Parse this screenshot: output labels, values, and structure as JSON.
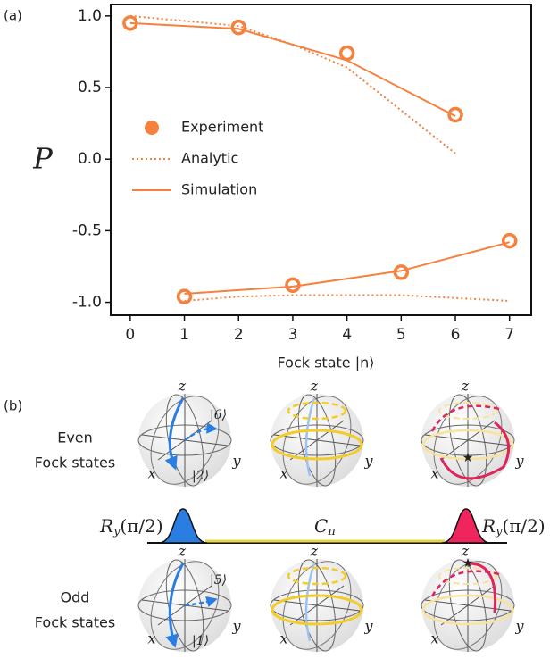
{
  "chart_data": {
    "type": "line",
    "panel_label": "(a)",
    "xlabel": "Fock state |n⟩",
    "ylabel": "P",
    "xlim": [
      -0.36,
      7.4
    ],
    "ylim": [
      -1.09,
      1.08
    ],
    "xticks": [
      0,
      1,
      2,
      3,
      4,
      5,
      6,
      7
    ],
    "yticks": [
      {
        "value": 1.0,
        "label": "1.0"
      },
      0.5,
      {
        "value": 0.0,
        "label": "0.0"
      },
      -0.5,
      {
        "value": -1.0,
        "label": "-1.0"
      }
    ],
    "legend_loc": "center left",
    "series": [
      {
        "name": "Experiment",
        "style": "markers",
        "color": "#f5813f",
        "parts": [
          {
            "x": [
              0,
              2,
              4,
              6
            ],
            "values": [
              0.95,
              0.92,
              0.74,
              0.31
            ]
          },
          {
            "x": [
              1,
              3,
              5,
              7
            ],
            "values": [
              -0.96,
              -0.88,
              -0.79,
              -0.57
            ]
          }
        ]
      },
      {
        "name": "Analytic",
        "style": "dotted",
        "color": "#f5813f",
        "parts": [
          {
            "x": [
              0,
              2,
              3,
              4,
              6
            ],
            "values": [
              1.0,
              0.93,
              0.8,
              0.64,
              0.04
            ]
          },
          {
            "x": [
              1,
              2,
              3,
              4,
              5,
              6,
              7
            ],
            "values": [
              -0.99,
              -0.96,
              -0.95,
              -0.95,
              -0.95,
              -0.97,
              -0.99
            ]
          }
        ]
      },
      {
        "name": "Simulation",
        "style": "solid",
        "color": "#f5813f",
        "parts": [
          {
            "x": [
              0,
              2,
              3,
              4,
              6
            ],
            "values": [
              0.95,
              0.91,
              0.8,
              0.69,
              0.3
            ]
          },
          {
            "x": [
              1,
              3,
              5,
              7
            ],
            "values": [
              -0.94,
              -0.89,
              -0.78,
              -0.58
            ]
          }
        ]
      }
    ]
  },
  "diagram": {
    "panel_label": "(b)",
    "rows": [
      {
        "label_lines": [
          "Even",
          "Fock states"
        ],
        "spheres": [
          {
            "axes": [
              "z",
              "x",
              "y"
            ],
            "states": [
              "|6⟩",
              "|2⟩"
            ]
          },
          {
            "axes": [
              "z",
              "x",
              "y"
            ],
            "states": []
          },
          {
            "axes": [
              "z",
              "x",
              "y"
            ],
            "states": []
          }
        ]
      },
      {
        "label_lines": [
          "Odd",
          "Fock states"
        ],
        "spheres": [
          {
            "axes": [
              "z",
              "x",
              "y"
            ],
            "states": [
              "|5⟩",
              "|1⟩"
            ]
          },
          {
            "axes": [
              "z",
              "x",
              "y"
            ],
            "states": []
          },
          {
            "axes": [
              "z",
              "x",
              "y"
            ],
            "states": []
          }
        ]
      }
    ],
    "pulse_left": {
      "symbol": "R",
      "subscript": "y",
      "argument": "(π/2)"
    },
    "pulse_middle": {
      "symbol": "C",
      "subscript": "π"
    },
    "pulse_right": {
      "symbol": "R",
      "subscript": "y",
      "argument": "(π/2)"
    }
  }
}
